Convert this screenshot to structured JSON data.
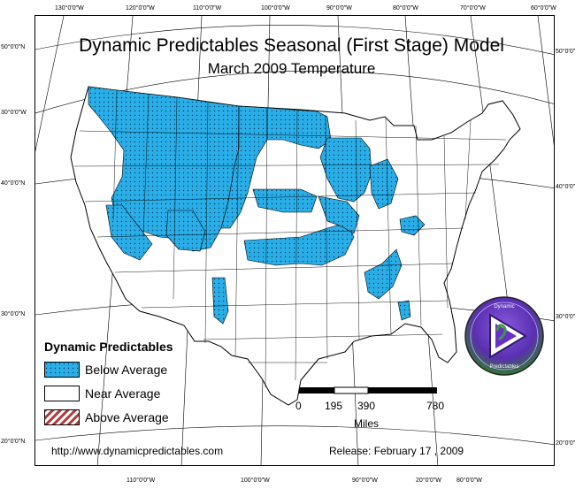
{
  "title": "Dynamic Predictables Seasonal (First Stage) Model",
  "subtitle": "March 2009 Temperature",
  "longitude_ticks_top": [
    "130°0'0\"W",
    "120°0'0\"W",
    "110°0'0\"W",
    "100°0'0\"W",
    "90°0'0\"W",
    "80°0'0\"W",
    "70°0'0\"W",
    "60°0'0\"W"
  ],
  "longitude_ticks_bottom": [
    "110°0'0\"W",
    "100°0'0\"W",
    "90°0'0\"W",
    "20°0'0\"W",
    "80°0'0\"W"
  ],
  "latitude_ticks_left": [
    "50°0'0\"N",
    "30°0'0\"W",
    "40°0'0\"N",
    "30°0'0\"N",
    "20°0'0\"N"
  ],
  "latitude_ticks_right": [
    "50°0'0\"",
    "40°0'0\"",
    "30°0'0\"",
    "20°0'0\""
  ],
  "legend": {
    "title": "Dynamic Predictables",
    "items": [
      {
        "label": "Below Average",
        "color": "#29aee8",
        "pattern": "dotted"
      },
      {
        "label": "Near Average",
        "color": "#ffffff",
        "pattern": "none"
      },
      {
        "label": "Above Average",
        "color": "#b03a3a",
        "pattern": "hatched"
      }
    ]
  },
  "scale_bar": {
    "ticks": [
      "0",
      "195",
      "390",
      "780"
    ],
    "unit": "Miles"
  },
  "website": "http://www.dynamicpredictables.com",
  "release": "Release: February 17 , 2009",
  "logo": {
    "top_text": "Dynamic",
    "bottom_text": "Predictables"
  },
  "colors": {
    "below_average": "#29aee8",
    "near_average": "#ffffff",
    "above_average": "#b03a3a",
    "logo_purple": "#6a2fc8",
    "logo_green": "#3c9a3c"
  }
}
